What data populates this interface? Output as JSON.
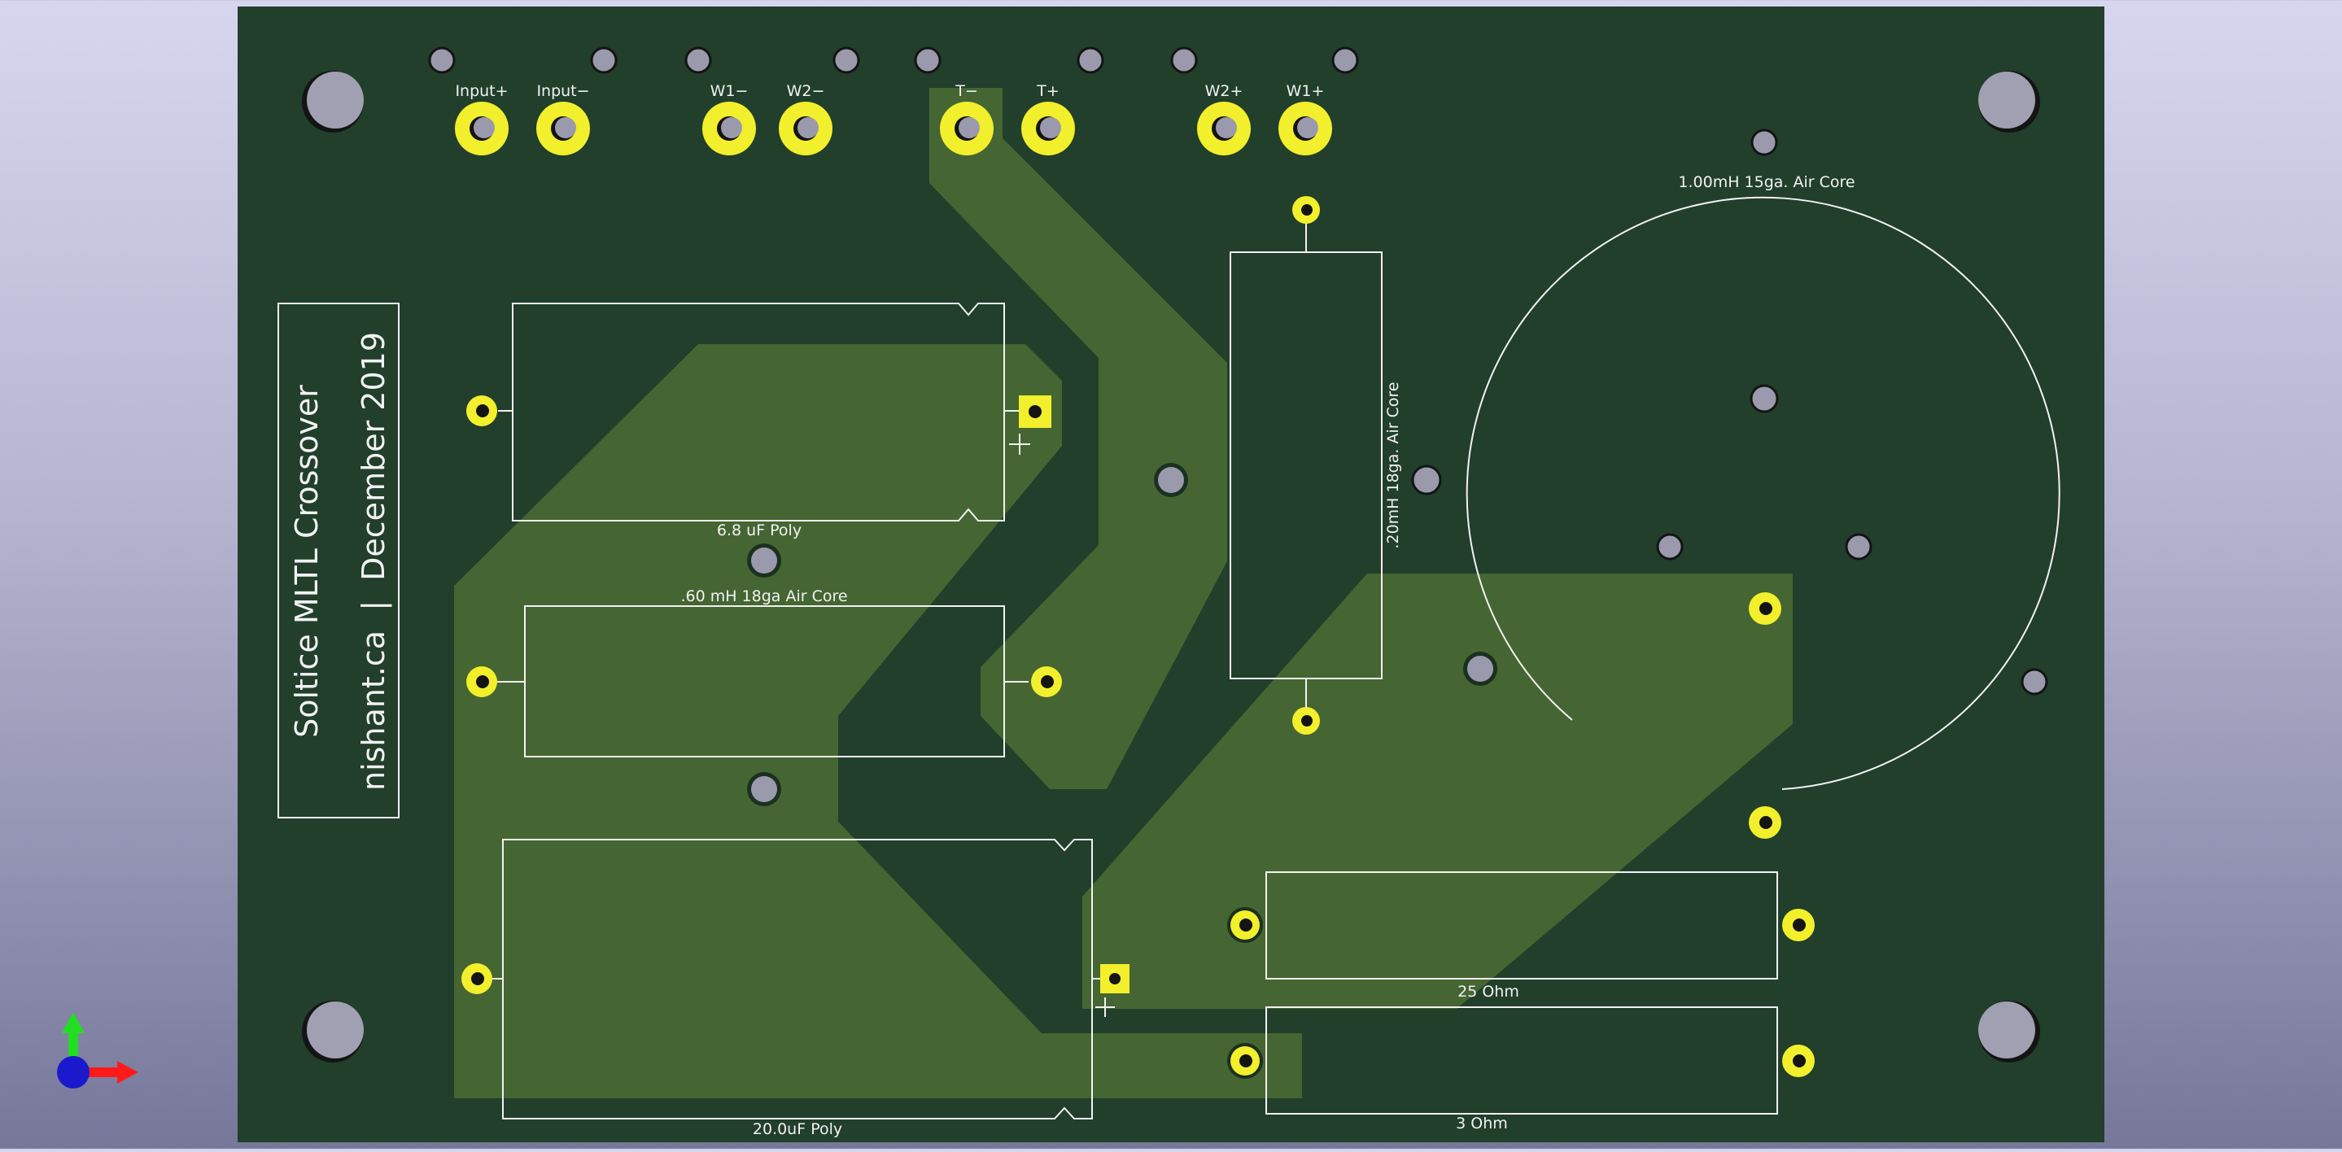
{
  "board": {
    "colors": {
      "background_top": "#d6d6ee",
      "background_bottom": "#77779a",
      "soldermask": "#213f2b",
      "copper": "#456632",
      "pad": "#f2ef2c",
      "hole": "#9a9aac",
      "silkscreen": "#f2f2f2"
    },
    "title_line1": "Soltice MLTL Crossover",
    "title_line2": "nishant.ca  |  December 2019"
  },
  "terminals": {
    "input_plus": "Input+",
    "input_minus": "Input−",
    "w1_minus": "W1−",
    "w2_minus": "W2−",
    "t_minus": "T−",
    "t_plus": "T+",
    "w2_plus": "W2+",
    "w1_plus": "W1+"
  },
  "components": {
    "cap_6_8": "6.8 uF Poly",
    "ind_060": ".60 mH 18ga Air Core",
    "cap_20": "20.0uF Poly",
    "ind_020": ".20mH 18ga. Air Core",
    "ind_100": "1.00mH 15ga. Air Core",
    "res_25": "25 Ohm",
    "res_3": "3 Ohm"
  },
  "axis_gizmo": {
    "x_color": "#ff1a1a",
    "y_color": "#22dd22",
    "z_color": "#1a1acc"
  }
}
